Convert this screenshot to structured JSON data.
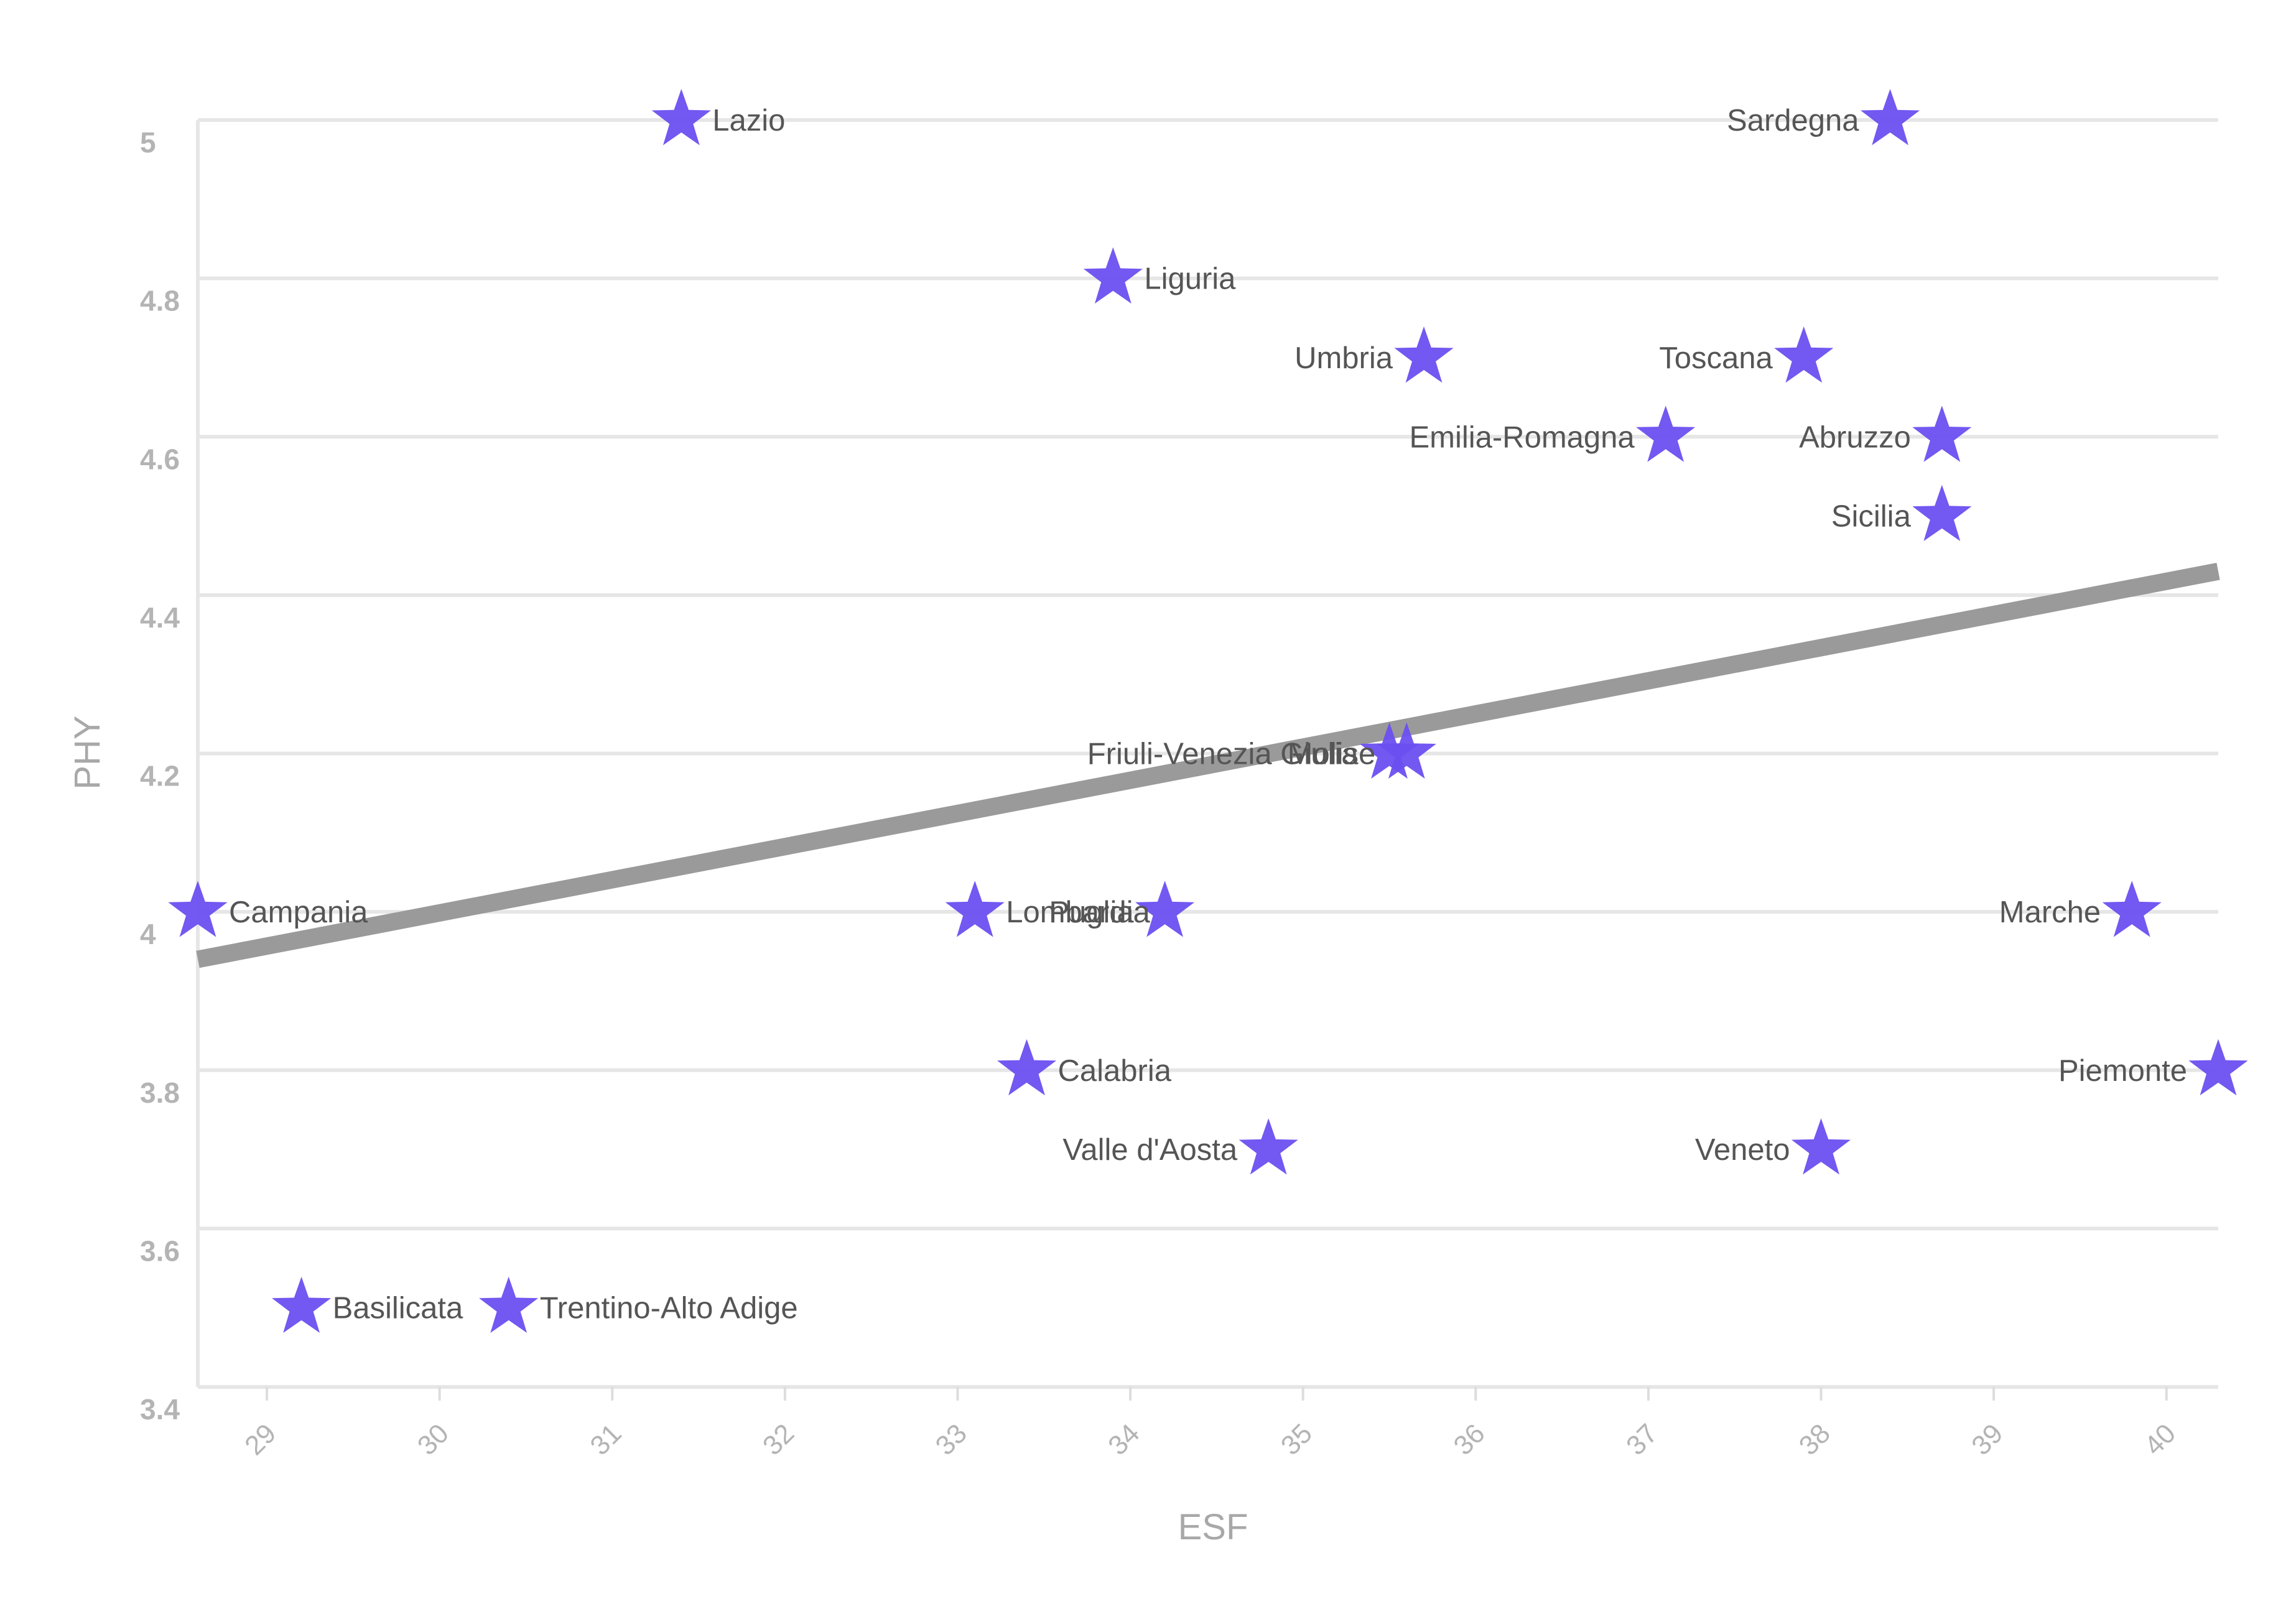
{
  "chart_data": {
    "type": "scatter",
    "title": "",
    "xlabel": "ESF",
    "ylabel": "PHY",
    "xlim": [
      28.6,
      40.3
    ],
    "ylim": [
      3.4,
      5.0
    ],
    "x_ticks": [
      29,
      30,
      31,
      32,
      33,
      34,
      35,
      36,
      37,
      38,
      39,
      40
    ],
    "y_ticks": [
      3.4,
      3.6,
      3.8,
      4.0,
      4.2,
      4.4,
      4.6,
      4.8,
      5.0
    ],
    "x_tick_labels": [
      "29",
      "30",
      "31",
      "32",
      "33",
      "34",
      "35",
      "36",
      "37",
      "38",
      "39",
      "40"
    ],
    "y_tick_labels": [
      "3.4",
      "3.6",
      "3.8",
      "4",
      "4.2",
      "4.4",
      "4.6",
      "4.8",
      "5"
    ],
    "grid": true,
    "marker": "star",
    "marker_color": "#6b4ff0",
    "trendline_color": "#9a9a9a",
    "points": [
      {
        "label": "Lazio",
        "x": 31.4,
        "y": 5.0,
        "label_side": "right"
      },
      {
        "label": "Sardegna",
        "x": 38.4,
        "y": 5.0,
        "label_side": "left"
      },
      {
        "label": "Liguria",
        "x": 33.9,
        "y": 4.8,
        "label_side": "right"
      },
      {
        "label": "Umbria",
        "x": 35.7,
        "y": 4.7,
        "label_side": "left"
      },
      {
        "label": "Toscana",
        "x": 37.9,
        "y": 4.7,
        "label_side": "left"
      },
      {
        "label": "Emilia-Romagna",
        "x": 37.1,
        "y": 4.6,
        "label_side": "left"
      },
      {
        "label": "Abruzzo",
        "x": 38.7,
        "y": 4.6,
        "label_side": "left"
      },
      {
        "label": "Sicilia",
        "x": 38.7,
        "y": 4.5,
        "label_side": "left"
      },
      {
        "label": "Friuli-Venezia Giulia",
        "x": 35.5,
        "y": 4.2,
        "label_side": "left"
      },
      {
        "label": "Molise",
        "x": 35.6,
        "y": 4.2,
        "label_side": "left"
      },
      {
        "label": "Campania",
        "x": 28.6,
        "y": 4.0,
        "label_side": "right"
      },
      {
        "label": "Lombardia",
        "x": 33.1,
        "y": 4.0,
        "label_side": "right"
      },
      {
        "label": "Puglia",
        "x": 34.2,
        "y": 4.0,
        "label_side": "left"
      },
      {
        "label": "Marche",
        "x": 39.8,
        "y": 4.0,
        "label_side": "left"
      },
      {
        "label": "Calabria",
        "x": 33.4,
        "y": 3.8,
        "label_side": "right"
      },
      {
        "label": "Piemonte",
        "x": 40.3,
        "y": 3.8,
        "label_side": "left"
      },
      {
        "label": "Valle d'Aosta",
        "x": 34.8,
        "y": 3.7,
        "label_side": "left"
      },
      {
        "label": "Veneto",
        "x": 38.0,
        "y": 3.7,
        "label_side": "left"
      },
      {
        "label": "Basilicata",
        "x": 29.2,
        "y": 3.5,
        "label_side": "right"
      },
      {
        "label": "Trentino-Alto Adige",
        "x": 30.4,
        "y": 3.5,
        "label_side": "right"
      }
    ],
    "trendline": {
      "x": [
        28.6,
        40.3
      ],
      "y": [
        3.94,
        4.43
      ]
    }
  }
}
